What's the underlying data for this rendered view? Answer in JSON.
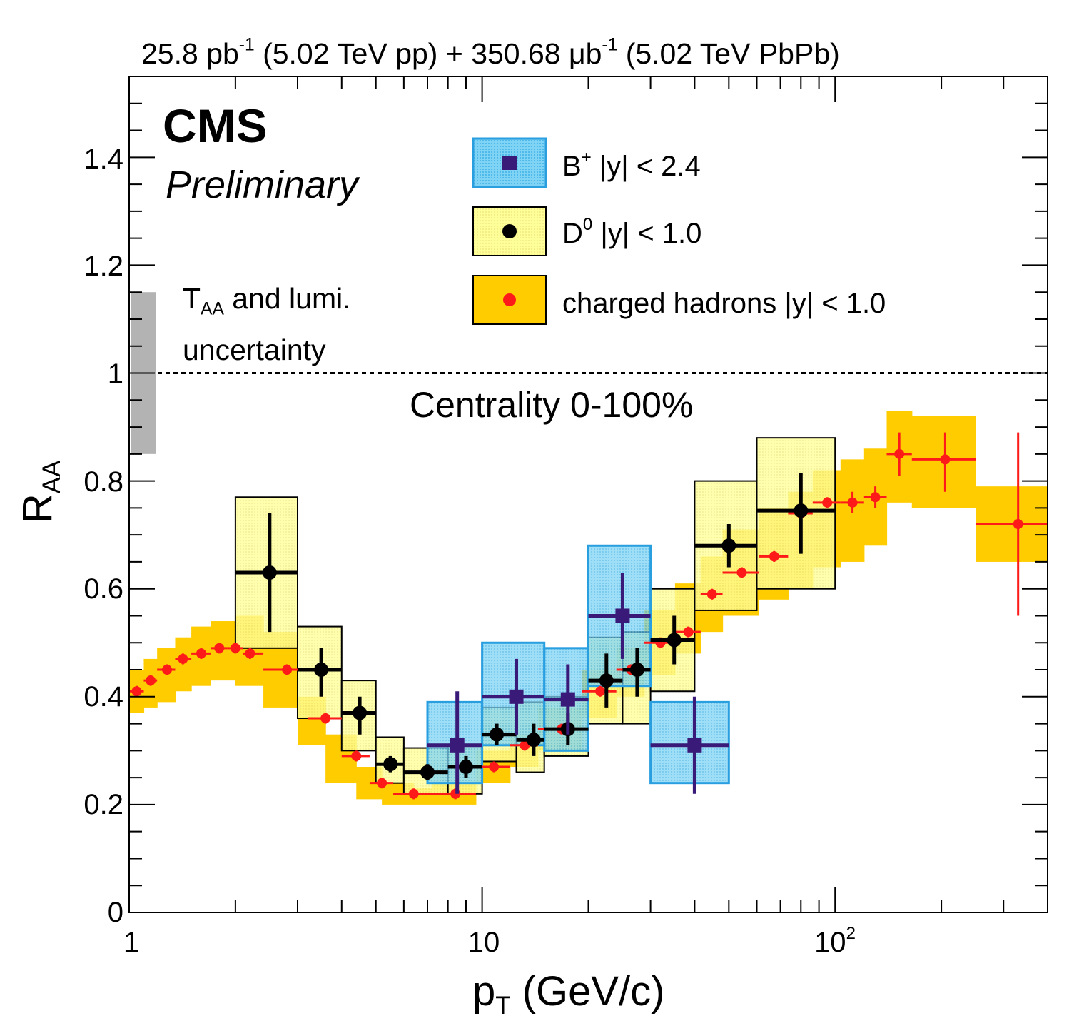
{
  "header": {
    "lumi_pp_value": "25.8 pb",
    "lumi_pp_exp": "-1",
    "lumi_pp_tail": " (5.02 TeV pp) + 350.68 μb",
    "lumi_pbpb_exp": "-1",
    "lumi_pbpb_tail": " (5.02 TeV PbPb)"
  },
  "branding": {
    "experiment": "CMS",
    "status": "Preliminary"
  },
  "taa_note": {
    "t": "T",
    "sub": "AA",
    "rest": " and lumi.",
    "line2": "uncertainty"
  },
  "centrality": "Centrality 0-100%",
  "colors": {
    "bplus_box": "#7fd3f4",
    "bplus_edge": "#2a9fe0",
    "bplus_marker": "#3a1a78",
    "d0_box": "#ffff99",
    "d0_edge": "#000000",
    "d0_marker": "#000000",
    "h_band": "#ffcc00",
    "h_marker": "#ff1a1a",
    "taa_box": "#b3b3b3"
  },
  "chart_data": {
    "type": "scatter",
    "title": "",
    "xlabel_main": "p",
    "xlabel_sub": "T",
    "xlabel_rest": " (GeV/c)",
    "ylabel_main": "R",
    "ylabel_sub": "AA",
    "xscale": "log",
    "xlim": [
      1,
      400
    ],
    "ylim": [
      0,
      1.55
    ],
    "x_ticks": [
      {
        "value": 1,
        "label": "1",
        "exp": ""
      },
      {
        "value": 10,
        "label": "10",
        "exp": ""
      },
      {
        "value": 100,
        "label": "10",
        "exp": "2"
      }
    ],
    "y_ticks": [
      {
        "value": 0,
        "label": "0"
      },
      {
        "value": 0.2,
        "label": "0.2"
      },
      {
        "value": 0.4,
        "label": "0.4"
      },
      {
        "value": 0.6,
        "label": "0.6"
      },
      {
        "value": 0.8,
        "label": "0.8"
      },
      {
        "value": 1.0,
        "label": "1"
      },
      {
        "value": 1.2,
        "label": "1.2"
      },
      {
        "value": 1.4,
        "label": "1.4"
      }
    ],
    "reference_line": 1.0,
    "taa_lumi_uncertainty": [
      0.85,
      1.15
    ],
    "legend": [
      {
        "name": "B+",
        "label": "B",
        "sup": "+",
        "text": " |y| < 2.4"
      },
      {
        "name": "D0",
        "label": "D",
        "sup": "0",
        "text": " |y| < 1.0"
      },
      {
        "name": "charged-hadrons",
        "label": "",
        "sup": "",
        "text": "charged hadrons |y| < 1.0"
      }
    ],
    "series": [
      {
        "name": "charged-hadrons",
        "band": [
          [
            1.0,
            1.1,
            0.37,
            0.45
          ],
          [
            1.1,
            1.2,
            0.38,
            0.47
          ],
          [
            1.2,
            1.35,
            0.39,
            0.49
          ],
          [
            1.35,
            1.5,
            0.41,
            0.51
          ],
          [
            1.5,
            1.7,
            0.42,
            0.53
          ],
          [
            1.7,
            2.0,
            0.43,
            0.54
          ],
          [
            2.0,
            2.4,
            0.42,
            0.55
          ],
          [
            2.4,
            3.0,
            0.38,
            0.52
          ],
          [
            3.0,
            3.6,
            0.31,
            0.4
          ],
          [
            3.6,
            4.4,
            0.24,
            0.33
          ],
          [
            4.4,
            5.2,
            0.21,
            0.27
          ],
          [
            5.2,
            6.4,
            0.2,
            0.24
          ],
          [
            6.4,
            7.2,
            0.2,
            0.23
          ],
          [
            7.2,
            9.6,
            0.2,
            0.24
          ],
          [
            9.6,
            12.0,
            0.24,
            0.3
          ],
          [
            12.0,
            14.4,
            0.27,
            0.33
          ],
          [
            14.4,
            19.2,
            0.3,
            0.38
          ],
          [
            19.2,
            24.0,
            0.36,
            0.45
          ],
          [
            24.0,
            28.8,
            0.4,
            0.49
          ],
          [
            28.8,
            35.2,
            0.44,
            0.56
          ],
          [
            35.2,
            41.6,
            0.48,
            0.61
          ],
          [
            41.6,
            48.0,
            0.52,
            0.66
          ],
          [
            48.0,
            60.8,
            0.55,
            0.71
          ],
          [
            60.8,
            73.6,
            0.58,
            0.75
          ],
          [
            73.6,
            86.4,
            0.6,
            0.78
          ],
          [
            86.4,
            103.6,
            0.64,
            0.82
          ],
          [
            103.6,
            120.8,
            0.65,
            0.84
          ],
          [
            120.8,
            140.0,
            0.68,
            0.86
          ],
          [
            140.0,
            165.0,
            0.76,
            0.93
          ],
          [
            165.0,
            250.0,
            0.75,
            0.92
          ],
          [
            250.0,
            400.0,
            0.65,
            0.79
          ]
        ],
        "points": [
          {
            "x": 1.05,
            "y": 0.41,
            "xlo": 1.0,
            "xhi": 1.1,
            "ylo": 0.4,
            "yhi": 0.42
          },
          {
            "x": 1.15,
            "y": 0.43,
            "xlo": 1.1,
            "xhi": 1.2,
            "ylo": 0.42,
            "yhi": 0.44
          },
          {
            "x": 1.28,
            "y": 0.45,
            "xlo": 1.2,
            "xhi": 1.35,
            "ylo": 0.44,
            "yhi": 0.46
          },
          {
            "x": 1.42,
            "y": 0.47,
            "xlo": 1.35,
            "xhi": 1.5,
            "ylo": 0.46,
            "yhi": 0.48
          },
          {
            "x": 1.6,
            "y": 0.48,
            "xlo": 1.5,
            "xhi": 1.7,
            "ylo": 0.47,
            "yhi": 0.49
          },
          {
            "x": 1.8,
            "y": 0.49,
            "xlo": 1.7,
            "xhi": 1.9,
            "ylo": 0.48,
            "yhi": 0.5
          },
          {
            "x": 2.0,
            "y": 0.49,
            "xlo": 1.9,
            "xhi": 2.1,
            "ylo": 0.48,
            "yhi": 0.5
          },
          {
            "x": 2.2,
            "y": 0.48,
            "xlo": 2.1,
            "xhi": 2.4,
            "ylo": 0.47,
            "yhi": 0.49
          },
          {
            "x": 2.8,
            "y": 0.45,
            "xlo": 2.4,
            "xhi": 3.2,
            "ylo": 0.44,
            "yhi": 0.46
          },
          {
            "x": 3.6,
            "y": 0.36,
            "xlo": 3.2,
            "xhi": 4.0,
            "ylo": 0.35,
            "yhi": 0.37
          },
          {
            "x": 4.4,
            "y": 0.29,
            "xlo": 4.0,
            "xhi": 4.8,
            "ylo": 0.28,
            "yhi": 0.3
          },
          {
            "x": 5.2,
            "y": 0.24,
            "xlo": 4.8,
            "xhi": 5.6,
            "ylo": 0.23,
            "yhi": 0.25
          },
          {
            "x": 6.4,
            "y": 0.22,
            "xlo": 5.6,
            "xhi": 7.2,
            "ylo": 0.21,
            "yhi": 0.23
          },
          {
            "x": 8.4,
            "y": 0.22,
            "xlo": 7.2,
            "xhi": 9.6,
            "ylo": 0.21,
            "yhi": 0.23
          },
          {
            "x": 10.8,
            "y": 0.27,
            "xlo": 9.6,
            "xhi": 12.0,
            "ylo": 0.26,
            "yhi": 0.28
          },
          {
            "x": 13.2,
            "y": 0.31,
            "xlo": 12.0,
            "xhi": 14.4,
            "ylo": 0.3,
            "yhi": 0.32
          },
          {
            "x": 16.8,
            "y": 0.34,
            "xlo": 14.4,
            "xhi": 19.2,
            "ylo": 0.33,
            "yhi": 0.35
          },
          {
            "x": 21.6,
            "y": 0.41,
            "xlo": 19.2,
            "xhi": 24.0,
            "ylo": 0.4,
            "yhi": 0.42
          },
          {
            "x": 26.4,
            "y": 0.45,
            "xlo": 24.0,
            "xhi": 28.8,
            "ylo": 0.44,
            "yhi": 0.46
          },
          {
            "x": 32.0,
            "y": 0.5,
            "xlo": 28.8,
            "xhi": 35.2,
            "ylo": 0.49,
            "yhi": 0.51
          },
          {
            "x": 38.4,
            "y": 0.52,
            "xlo": 35.2,
            "xhi": 41.6,
            "ylo": 0.51,
            "yhi": 0.53
          },
          {
            "x": 44.8,
            "y": 0.59,
            "xlo": 41.6,
            "xhi": 48.0,
            "ylo": 0.58,
            "yhi": 0.6
          },
          {
            "x": 54.4,
            "y": 0.63,
            "xlo": 48.0,
            "xhi": 60.8,
            "ylo": 0.62,
            "yhi": 0.64
          },
          {
            "x": 67.2,
            "y": 0.66,
            "xlo": 60.8,
            "xhi": 73.6,
            "ylo": 0.65,
            "yhi": 0.67
          },
          {
            "x": 80.0,
            "y": 0.74,
            "xlo": 73.6,
            "xhi": 86.4,
            "ylo": 0.73,
            "yhi": 0.75
          },
          {
            "x": 95.0,
            "y": 0.76,
            "xlo": 86.4,
            "xhi": 103.6,
            "ylo": 0.75,
            "yhi": 0.77
          },
          {
            "x": 112.0,
            "y": 0.76,
            "xlo": 103.6,
            "xhi": 120.8,
            "ylo": 0.74,
            "yhi": 0.78
          },
          {
            "x": 130.0,
            "y": 0.77,
            "xlo": 120.8,
            "xhi": 140.0,
            "ylo": 0.75,
            "yhi": 0.79
          },
          {
            "x": 152.0,
            "y": 0.85,
            "xlo": 140.0,
            "xhi": 165.0,
            "ylo": 0.81,
            "yhi": 0.89
          },
          {
            "x": 205.0,
            "y": 0.84,
            "xlo": 165.0,
            "xhi": 250.0,
            "ylo": 0.78,
            "yhi": 0.89
          },
          {
            "x": 330.0,
            "y": 0.72,
            "xlo": 250.0,
            "xhi": 400.0,
            "ylo": 0.55,
            "yhi": 0.89
          }
        ]
      },
      {
        "name": "D0",
        "points": [
          {
            "x": 2.5,
            "y": 0.63,
            "xlo": 2.0,
            "xhi": 3.0,
            "ylo": 0.52,
            "yhi": 0.74,
            "syslo": 0.49,
            "syshi": 0.77
          },
          {
            "x": 3.5,
            "y": 0.45,
            "xlo": 3.0,
            "xhi": 4.0,
            "ylo": 0.4,
            "yhi": 0.49,
            "syslo": 0.36,
            "syshi": 0.53
          },
          {
            "x": 4.5,
            "y": 0.37,
            "xlo": 4.0,
            "xhi": 5.0,
            "ylo": 0.33,
            "yhi": 0.4,
            "syslo": 0.3,
            "syshi": 0.43
          },
          {
            "x": 5.5,
            "y": 0.275,
            "xlo": 5.0,
            "xhi": 6.0,
            "ylo": 0.26,
            "yhi": 0.29,
            "syslo": 0.24,
            "syshi": 0.325
          },
          {
            "x": 7.0,
            "y": 0.26,
            "xlo": 6.0,
            "xhi": 8.0,
            "ylo": 0.245,
            "yhi": 0.275,
            "syslo": 0.22,
            "syshi": 0.305
          },
          {
            "x": 9.0,
            "y": 0.27,
            "xlo": 8.0,
            "xhi": 10.0,
            "ylo": 0.25,
            "yhi": 0.29,
            "syslo": 0.22,
            "syshi": 0.31
          },
          {
            "x": 11.0,
            "y": 0.33,
            "xlo": 10.0,
            "xhi": 12.5,
            "ylo": 0.31,
            "yhi": 0.35,
            "syslo": 0.28,
            "syshi": 0.38
          },
          {
            "x": 14.0,
            "y": 0.32,
            "xlo": 12.5,
            "xhi": 15.0,
            "ylo": 0.29,
            "yhi": 0.35,
            "syslo": 0.26,
            "syshi": 0.39
          },
          {
            "x": 17.5,
            "y": 0.34,
            "xlo": 15.0,
            "xhi": 20.0,
            "ylo": 0.31,
            "yhi": 0.37,
            "syslo": 0.29,
            "syshi": 0.4
          },
          {
            "x": 22.5,
            "y": 0.43,
            "xlo": 20.0,
            "xhi": 25.0,
            "ylo": 0.38,
            "yhi": 0.48,
            "syslo": 0.35,
            "syshi": 0.51
          },
          {
            "x": 27.5,
            "y": 0.45,
            "xlo": 25.0,
            "xhi": 30.0,
            "ylo": 0.4,
            "yhi": 0.49,
            "syslo": 0.35,
            "syshi": 0.52
          },
          {
            "x": 35.0,
            "y": 0.505,
            "xlo": 30.0,
            "xhi": 40.0,
            "ylo": 0.46,
            "yhi": 0.55,
            "syslo": 0.41,
            "syshi": 0.6
          },
          {
            "x": 50.0,
            "y": 0.68,
            "xlo": 40.0,
            "xhi": 60.0,
            "ylo": 0.64,
            "yhi": 0.72,
            "syslo": 0.56,
            "syshi": 0.8
          },
          {
            "x": 80.0,
            "y": 0.745,
            "xlo": 60.0,
            "xhi": 100.0,
            "ylo": 0.665,
            "yhi": 0.815,
            "syslo": 0.6,
            "syshi": 0.88
          }
        ]
      },
      {
        "name": "B+",
        "points": [
          {
            "x": 8.5,
            "y": 0.31,
            "xlo": 7.0,
            "xhi": 10.0,
            "ylo": 0.22,
            "yhi": 0.41,
            "syslo": 0.24,
            "syshi": 0.39
          },
          {
            "x": 12.5,
            "y": 0.4,
            "xlo": 10.0,
            "xhi": 15.0,
            "ylo": 0.33,
            "yhi": 0.47,
            "syslo": 0.31,
            "syshi": 0.5
          },
          {
            "x": 17.5,
            "y": 0.395,
            "xlo": 15.0,
            "xhi": 20.0,
            "ylo": 0.33,
            "yhi": 0.46,
            "syslo": 0.3,
            "syshi": 0.49
          },
          {
            "x": 25.0,
            "y": 0.55,
            "xlo": 20.0,
            "xhi": 30.0,
            "ylo": 0.47,
            "yhi": 0.63,
            "syslo": 0.42,
            "syshi": 0.68
          },
          {
            "x": 40.0,
            "y": 0.31,
            "xlo": 30.0,
            "xhi": 50.0,
            "ylo": 0.22,
            "yhi": 0.4,
            "syslo": 0.24,
            "syshi": 0.39
          }
        ]
      }
    ]
  }
}
